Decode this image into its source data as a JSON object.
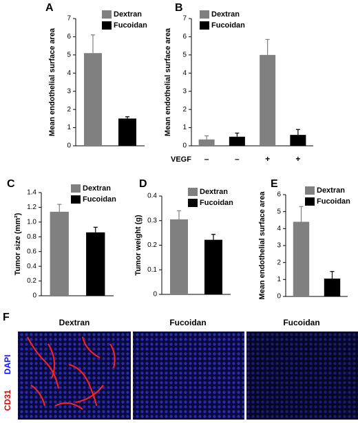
{
  "chart_data": [
    {
      "type": "bar",
      "label": "A",
      "ylabel": "Mean endothelial surface area",
      "categories": [
        null,
        null
      ],
      "series": [
        {
          "name": "Dextran",
          "color": "#808080",
          "values": [
            5.1,
            null
          ],
          "errors": [
            1.0,
            null
          ]
        },
        {
          "name": "Fucoidan",
          "color": "#000000",
          "values": [
            null,
            1.5
          ],
          "errors": [
            null,
            0.1
          ]
        }
      ],
      "ylim": [
        0,
        7
      ],
      "yticks": [
        0,
        1,
        2,
        3,
        4,
        5,
        6,
        7
      ],
      "legend": "upper right"
    },
    {
      "type": "bar",
      "label": "B",
      "ylabel": "Mean endothelial surface area",
      "xlabel": "VEGF",
      "categories": [
        "–",
        "–",
        "+",
        "+"
      ],
      "series": [
        {
          "name": "Dextran",
          "color": "#808080",
          "values": [
            0.35,
            null,
            5.0,
            null
          ],
          "errors": [
            0.2,
            null,
            0.85,
            null
          ]
        },
        {
          "name": "Fucoidan",
          "color": "#000000",
          "values": [
            null,
            0.5,
            null,
            0.6
          ],
          "errors": [
            null,
            0.2,
            null,
            0.3
          ]
        }
      ],
      "ylim": [
        0,
        7
      ],
      "yticks": [
        0,
        1,
        2,
        3,
        4,
        5,
        6,
        7
      ],
      "legend": "upper left"
    },
    {
      "type": "bar",
      "label": "C",
      "ylabel": "Tumor size (mm²)",
      "categories": [
        null,
        null
      ],
      "series": [
        {
          "name": "Dextran",
          "color": "#808080",
          "values": [
            1.14,
            null
          ],
          "errors": [
            0.1,
            null
          ]
        },
        {
          "name": "Fucoidan",
          "color": "#000000",
          "values": [
            null,
            0.86
          ],
          "errors": [
            null,
            0.07
          ]
        }
      ],
      "ylim": [
        0,
        1.4
      ],
      "yticks": [
        0,
        0.2,
        0.4,
        0.6,
        0.8,
        {
          "value": 1,
          "label": "1.0"
        },
        1.2,
        1.4
      ],
      "legend": "upper right"
    },
    {
      "type": "bar",
      "label": "D",
      "ylabel": "Tumor weight (g)",
      "categories": [
        null,
        null
      ],
      "series": [
        {
          "name": "Dextran",
          "color": "#808080",
          "values": [
            0.305,
            null
          ],
          "errors": [
            0.035,
            null
          ]
        },
        {
          "name": "Fucoidan",
          "color": "#000000",
          "values": [
            null,
            0.222
          ],
          "errors": [
            null,
            0.022
          ]
        }
      ],
      "ylim": [
        0,
        0.4
      ],
      "yticks": [
        0,
        0.1,
        0.2,
        0.3,
        0.4
      ],
      "legend": "upper right"
    },
    {
      "type": "bar",
      "label": "E",
      "ylabel": "Mean endothelial surface area",
      "categories": [
        null,
        null
      ],
      "series": [
        {
          "name": "Dextran",
          "color": "#808080",
          "values": [
            4.4,
            null
          ],
          "errors": [
            0.9,
            null
          ]
        },
        {
          "name": "Fucoidan",
          "color": "#000000",
          "values": [
            null,
            1.05
          ],
          "errors": [
            null,
            0.42
          ]
        }
      ],
      "ylim": [
        0,
        6
      ],
      "yticks": [
        0,
        1,
        2,
        3,
        4,
        5,
        6
      ],
      "legend": "upper right"
    }
  ],
  "panel_f": {
    "label": "F",
    "columns": [
      "Dextran",
      "Fucoidan",
      "Fucoidan"
    ],
    "stains": [
      "CD31",
      "DAPI"
    ]
  }
}
